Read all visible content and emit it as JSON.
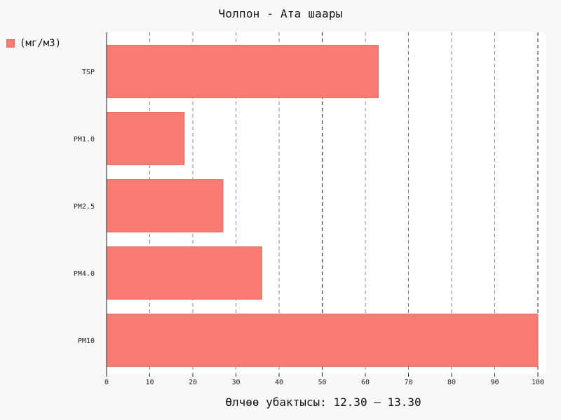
{
  "chart_data": {
    "type": "bar",
    "orientation": "horizontal",
    "title": "Чолпон - Ата шаары",
    "xlabel": "Өлчөө убактысы: 12.30 — 13.30",
    "ylabel": "",
    "categories": [
      "TSP",
      "PM1.0",
      "PM2.5",
      "PM4.0",
      "PM10"
    ],
    "series": [
      {
        "name": "(мг/м3)",
        "values": [
          63,
          18,
          27,
          36,
          100
        ]
      }
    ],
    "xlim": [
      0,
      100
    ],
    "x_ticks": [
      0,
      10,
      20,
      30,
      40,
      50,
      60,
      70,
      80,
      90,
      100
    ],
    "grid": "vertical dashed",
    "legend_position": "top-left",
    "colors": {
      "bar_fill": "#f87c72",
      "bar_edge": "#e56a5f",
      "grid": "#555555",
      "axis": "#222222"
    }
  }
}
